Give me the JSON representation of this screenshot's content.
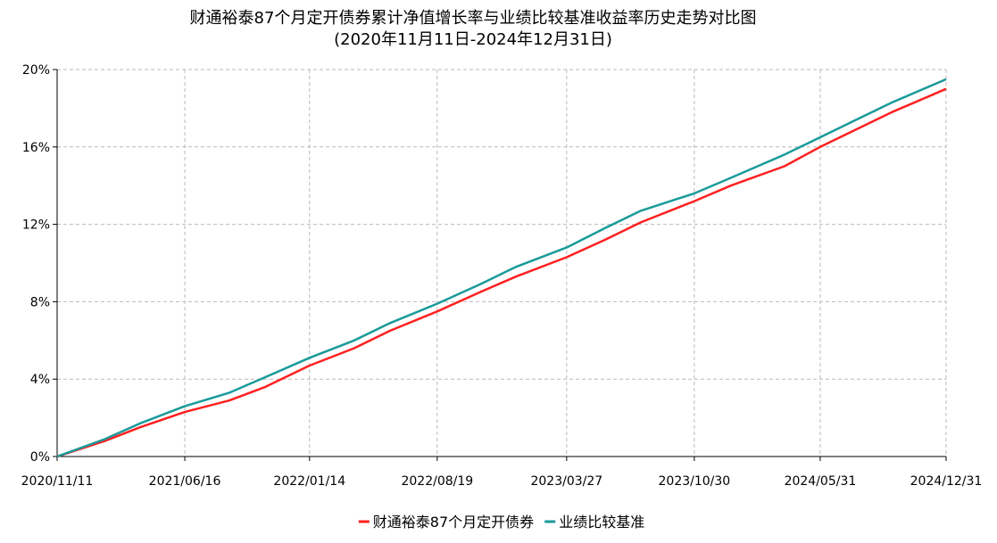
{
  "chart_data": {
    "type": "line",
    "title": "财通裕泰87个月定开债券累计净值增长率与业绩比较基准收益率历史走势对比图",
    "subtitle": "(2020年11月11日-2024年12月31日)",
    "xlabel": "",
    "ylabel": "",
    "x_tick_labels": [
      "2020/11/11",
      "2021/06/16",
      "2022/01/14",
      "2022/08/19",
      "2023/03/27",
      "2023/10/30",
      "2024/05/31",
      "2024/12/31"
    ],
    "y_tick_labels": [
      "0%",
      "4%",
      "8%",
      "12%",
      "16%",
      "20%"
    ],
    "ylim": [
      0,
      20
    ],
    "grid": true,
    "legend_position": "bottom",
    "x": [
      "2020/11/11",
      "2021/01/31",
      "2021/03/31",
      "2021/06/16",
      "2021/08/31",
      "2021/10/31",
      "2022/01/14",
      "2022/03/31",
      "2022/05/31",
      "2022/08/19",
      "2022/10/31",
      "2022/12/31",
      "2023/03/27",
      "2023/05/31",
      "2023/07/31",
      "2023/10/30",
      "2023/12/31",
      "2024/03/31",
      "2024/05/31",
      "2024/07/31",
      "2024/09/30",
      "2024/12/31"
    ],
    "series": [
      {
        "name": "财通裕泰87个月定开债券",
        "color": "#ff2020",
        "values": [
          0.0,
          0.8,
          1.5,
          2.3,
          2.9,
          3.6,
          4.7,
          5.6,
          6.5,
          7.5,
          8.5,
          9.3,
          10.3,
          11.2,
          12.1,
          13.2,
          14.0,
          15.0,
          16.0,
          16.9,
          17.8,
          19.0
        ]
      },
      {
        "name": "业绩比较基准",
        "color": "#1a9a9a",
        "values": [
          0.0,
          0.9,
          1.7,
          2.6,
          3.3,
          4.1,
          5.1,
          6.0,
          6.9,
          7.9,
          8.9,
          9.8,
          10.8,
          11.8,
          12.7,
          13.6,
          14.4,
          15.6,
          16.5,
          17.4,
          18.3,
          19.5
        ]
      }
    ]
  }
}
